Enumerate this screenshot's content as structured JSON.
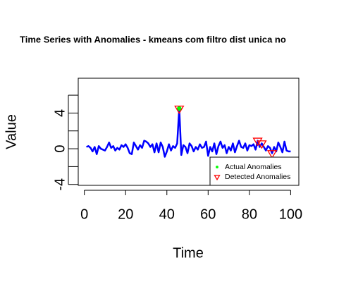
{
  "chart_data": {
    "type": "line",
    "title": "Time Series with Anomalies - kmeans com filtro dist unica no",
    "xlabel": "Time",
    "ylabel": "Value",
    "color": "#0000ff",
    "x": [
      1,
      2,
      3,
      4,
      5,
      6,
      7,
      8,
      9,
      10,
      11,
      12,
      13,
      14,
      15,
      16,
      17,
      18,
      19,
      20,
      21,
      22,
      23,
      24,
      25,
      26,
      27,
      28,
      29,
      30,
      31,
      32,
      33,
      34,
      35,
      36,
      37,
      38,
      39,
      40,
      41,
      42,
      43,
      44,
      45,
      46,
      47,
      48,
      49,
      50,
      51,
      52,
      53,
      54,
      55,
      56,
      57,
      58,
      59,
      60,
      61,
      62,
      63,
      64,
      65,
      66,
      67,
      68,
      69,
      70,
      71,
      72,
      73,
      74,
      75,
      76,
      77,
      78,
      79,
      80,
      81,
      82,
      83,
      84,
      85,
      86,
      87,
      88,
      89,
      90,
      91,
      92,
      93,
      94,
      95,
      96,
      97,
      98,
      99,
      100
    ],
    "values": [
      0.2,
      0.3,
      0.1,
      -0.3,
      0.2,
      -0.6,
      0.3,
      0.0,
      -0.1,
      -0.2,
      0.2,
      0.7,
      0.1,
      0.3,
      -0.2,
      0.1,
      -0.1,
      0.4,
      0.2,
      0.5,
      0.1,
      -0.5,
      -0.6,
      0.7,
      0.3,
      -0.1,
      0.4,
      0.1,
      0.9,
      0.8,
      0.6,
      0.2,
      0.5,
      -0.4,
      0.6,
      -0.4,
      0.7,
      0.2,
      -0.9,
      -0.3,
      0.5,
      -0.2,
      0.3,
      0.1,
      0.6,
      4.5,
      -0.7,
      0.4,
      0.2,
      -0.5,
      0.6,
      0.3,
      -0.3,
      0.2,
      -0.1,
      0.5,
      0.1,
      0.2,
      0.8,
      -0.8,
      0.2,
      -0.3,
      0.6,
      -0.6,
      0.3,
      0.8,
      0.1,
      0.4,
      -0.5,
      0.2,
      -0.2,
      0.6,
      -0.4,
      0.3,
      0.9,
      0.2,
      0.1,
      0.6,
      -0.2,
      0.4,
      0.3,
      0.5,
      -0.1,
      0.9,
      0.2,
      0.6,
      0.2,
      -0.2,
      0.3,
      0.1,
      -0.5,
      0.2,
      -0.3,
      0.7,
      0.2,
      -0.4,
      0.8,
      -0.2,
      -0.3,
      -0.3
    ],
    "anomalies": [
      {
        "name": "Actual Anomalies",
        "color": "#00ff00",
        "marker": "circle",
        "x": [
          46
        ],
        "values": [
          4.5
        ]
      },
      {
        "name": "Detected Anomalies",
        "color": "#ff0000",
        "marker": "triangle",
        "x": [
          46,
          84,
          86,
          91
        ],
        "values": [
          4.5,
          0.9,
          0.6,
          -0.5
        ]
      }
    ],
    "xlim": [
      -2.96,
      103.96
    ],
    "ylim": [
      -4.1,
      7.9
    ],
    "xticks": [
      0,
      20,
      40,
      60,
      80,
      100
    ],
    "yticks": [
      -4,
      {
        "value": -2,
        "label": null
      },
      0,
      {
        "value": 2,
        "label": null
      },
      4,
      {
        "value": 6,
        "label": null
      }
    ],
    "legend": "bottomright"
  }
}
